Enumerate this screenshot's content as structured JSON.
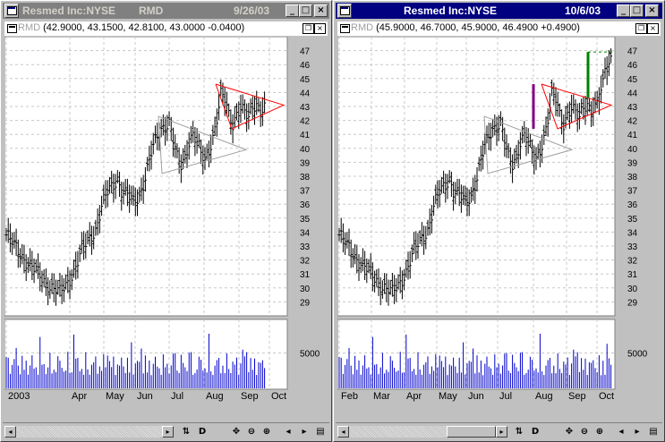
{
  "windows": [
    {
      "id": "left",
      "active": false,
      "title_left": "Resmed Inc:NYSE",
      "title_mid": "RMD",
      "title_right": "9/26/03",
      "header": {
        "symbol": "RMD",
        "values": "(42.9000, 43.1500, 42.8100, 43.0000 -0.0400)"
      },
      "price_ticks": [
        "47",
        "46",
        "45",
        "44",
        "43",
        "42",
        "41",
        "40",
        "39",
        "38",
        "37",
        "36",
        "35",
        "34",
        "33",
        "32",
        "31",
        "30",
        "29"
      ],
      "volume_tick": "5000",
      "months": [
        "2003",
        "Apr",
        "May",
        "Jun",
        "Jul",
        "Aug",
        "Sep",
        "Oct"
      ],
      "toolbar": {
        "scroll_left": "◂",
        "scroll_right": "▸",
        "tool_1": "⇅",
        "tool_2": "D",
        "tool_3": "✥",
        "tool_4": "⊖",
        "tool_5": "⊕",
        "tool_6": "◂",
        "tool_7": "▸",
        "tool_8": "▤"
      }
    },
    {
      "id": "right",
      "active": true,
      "title_left": "Resmed Inc:NYSE",
      "title_mid": "",
      "title_right": "10/6/03",
      "header": {
        "symbol": "RMD",
        "values": "(45.9000, 46.7000, 45.9000, 46.4900 +0.4900)"
      },
      "price_ticks": [
        "47",
        "46",
        "45",
        "44",
        "43",
        "42",
        "41",
        "40",
        "39",
        "38",
        "37",
        "36",
        "35",
        "34",
        "33",
        "32",
        "31",
        "30",
        "29"
      ],
      "volume_tick": "5000",
      "months": [
        "Feb",
        "Mar",
        "Apr",
        "May",
        "Jun",
        "Jul",
        "Aug",
        "Sep",
        "Oct"
      ],
      "toolbar": {
        "scroll_left": "◂",
        "scroll_right": "▸",
        "tool_1": "⇅",
        "tool_2": "D",
        "tool_3": "✥",
        "tool_4": "⊖",
        "tool_5": "⊕",
        "tool_6": "◂",
        "tool_7": "▸",
        "tool_8": "▤"
      }
    }
  ],
  "window_buttons": {
    "minimize": "_",
    "maximize": "□",
    "close": "×",
    "restore": "❐"
  },
  "colors": {
    "price_bar": "#000000",
    "volume_bar": "#0000cc",
    "triangle_red": "#ff0000",
    "triangle_gray": "#a0a0a0",
    "breakout_purple": "#800080",
    "breakout_green": "#008000",
    "active_title": "#000080",
    "inactive_title": "#808080"
  }
}
